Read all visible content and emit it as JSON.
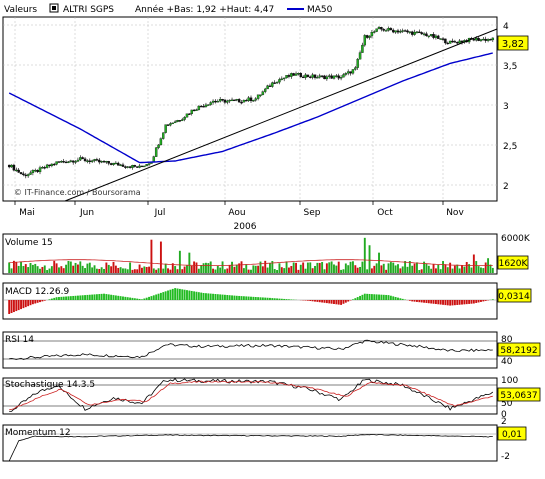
{
  "header": {
    "valeurs_label": "Valeurs",
    "security_name": "ALTRI SGPS",
    "range_text": "Année +Bas: 1,92 +Haut: 4,47",
    "ma_legend": "MA50"
  },
  "watermark": "© IT-Finance.com / Boursorama",
  "x_labels": [
    "Mai",
    "Jun",
    "Jul",
    "Aou",
    "Sep",
    "Oct",
    "Nov"
  ],
  "year_label": "2006",
  "price_axis_ticks": [
    "4",
    "3,5",
    "3",
    "2,5",
    "2"
  ],
  "current_price": "3,82",
  "panels": {
    "volume": {
      "label": "Volume 15",
      "top_tick": "6000K",
      "value": "1620K"
    },
    "macd": {
      "label": "MACD 12.26.9",
      "value": "0,0314"
    },
    "rsi": {
      "label": "RSI 14",
      "ticks": [
        "80",
        "40"
      ],
      "value": "58,2192"
    },
    "stoch": {
      "label": "Stochastique 14.3.5",
      "ticks": [
        "100",
        "50",
        "0"
      ],
      "value": "53,0637"
    },
    "momentum": {
      "label": "Momentum 12",
      "ticks": [
        "2",
        "-2"
      ],
      "value": "0,01"
    }
  },
  "colors": {
    "up": "#22aa22",
    "down": "#111111",
    "ma": "#0000cc",
    "macd_pos": "#22bb22",
    "macd_neg": "#cc1111",
    "highlight": "#ffff00",
    "vol_ma": "#cc2222"
  },
  "chart_data": {
    "type": "candlestick",
    "ylim": [
      1.8,
      4.1
    ],
    "price_points": [
      [
        "Mai",
        2.25
      ],
      [
        "Jun",
        2.3
      ],
      [
        "Jul",
        2.25
      ],
      [
        "Aou",
        2.8
      ],
      [
        "Aou",
        3.05
      ],
      [
        "Sep",
        3.35
      ],
      [
        "Sep",
        3.35
      ],
      [
        "Oct",
        3.9
      ],
      [
        "Nov",
        3.9
      ],
      [
        "Nov",
        3.82
      ]
    ],
    "ma50_points": [
      [
        "Mai",
        3.15
      ],
      [
        "Jun",
        2.7
      ],
      [
        "Jul",
        2.28
      ],
      [
        "Aou",
        2.4
      ],
      [
        "Sep",
        2.65
      ],
      [
        "Oct",
        3.2
      ],
      [
        "Nov",
        3.55
      ],
      [
        "Nov",
        3.65
      ]
    ],
    "trendline": [
      [
        1.8,
        3.95
      ]
    ],
    "last_close": 3.82,
    "year_low": 1.92,
    "year_high": 4.47
  }
}
